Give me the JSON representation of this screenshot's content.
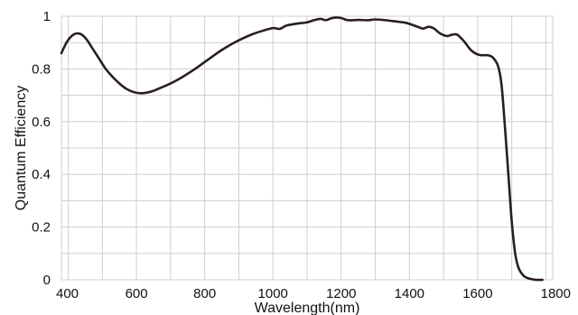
{
  "chart_data": {
    "type": "line",
    "title": "",
    "xlabel": "Wavelength(nm)",
    "ylabel": "Quantum Efficiency",
    "xlim": [
      380,
      1820
    ],
    "ylim": [
      0,
      1
    ],
    "grid": true,
    "x_ticks": [
      400,
      600,
      800,
      1000,
      1200,
      1400,
      1600,
      1800
    ],
    "x_tick_labels": [
      "400",
      "600",
      "800",
      "1000",
      "1200",
      "1400",
      "1600",
      "1800"
    ],
    "y_ticks": [
      0,
      0.2,
      0.4,
      0.6,
      0.8,
      1
    ],
    "y_tick_labels": [
      "0",
      "0.2",
      "0.4",
      "0.6",
      "0.8",
      "1"
    ],
    "series": [
      {
        "color": "#2a1f1d",
        "points": [
          [
            380,
            0.86
          ],
          [
            395,
            0.9
          ],
          [
            410,
            0.925
          ],
          [
            425,
            0.935
          ],
          [
            440,
            0.93
          ],
          [
            455,
            0.91
          ],
          [
            470,
            0.88
          ],
          [
            490,
            0.84
          ],
          [
            510,
            0.8
          ],
          [
            530,
            0.77
          ],
          [
            550,
            0.745
          ],
          [
            570,
            0.725
          ],
          [
            590,
            0.713
          ],
          [
            610,
            0.708
          ],
          [
            630,
            0.71
          ],
          [
            650,
            0.717
          ],
          [
            670,
            0.728
          ],
          [
            700,
            0.745
          ],
          [
            730,
            0.766
          ],
          [
            760,
            0.79
          ],
          [
            790,
            0.817
          ],
          [
            820,
            0.845
          ],
          [
            850,
            0.872
          ],
          [
            880,
            0.895
          ],
          [
            910,
            0.915
          ],
          [
            940,
            0.932
          ],
          [
            970,
            0.945
          ],
          [
            1000,
            0.955
          ],
          [
            1020,
            0.952
          ],
          [
            1040,
            0.965
          ],
          [
            1070,
            0.972
          ],
          [
            1100,
            0.977
          ],
          [
            1120,
            0.985
          ],
          [
            1140,
            0.99
          ],
          [
            1155,
            0.985
          ],
          [
            1170,
            0.992
          ],
          [
            1185,
            0.995
          ],
          [
            1200,
            0.993
          ],
          [
            1220,
            0.985
          ],
          [
            1250,
            0.986
          ],
          [
            1280,
            0.985
          ],
          [
            1300,
            0.988
          ],
          [
            1330,
            0.985
          ],
          [
            1360,
            0.98
          ],
          [
            1390,
            0.975
          ],
          [
            1420,
            0.962
          ],
          [
            1440,
            0.953
          ],
          [
            1455,
            0.96
          ],
          [
            1470,
            0.955
          ],
          [
            1490,
            0.935
          ],
          [
            1510,
            0.925
          ],
          [
            1525,
            0.93
          ],
          [
            1540,
            0.93
          ],
          [
            1560,
            0.905
          ],
          [
            1580,
            0.872
          ],
          [
            1600,
            0.855
          ],
          [
            1615,
            0.852
          ],
          [
            1630,
            0.852
          ],
          [
            1645,
            0.843
          ],
          [
            1660,
            0.81
          ],
          [
            1670,
            0.74
          ],
          [
            1680,
            0.58
          ],
          [
            1690,
            0.4
          ],
          [
            1700,
            0.22
          ],
          [
            1710,
            0.1
          ],
          [
            1720,
            0.045
          ],
          [
            1735,
            0.015
          ],
          [
            1750,
            0.005
          ],
          [
            1770,
            0.0
          ],
          [
            1790,
            0.0
          ]
        ]
      }
    ]
  }
}
